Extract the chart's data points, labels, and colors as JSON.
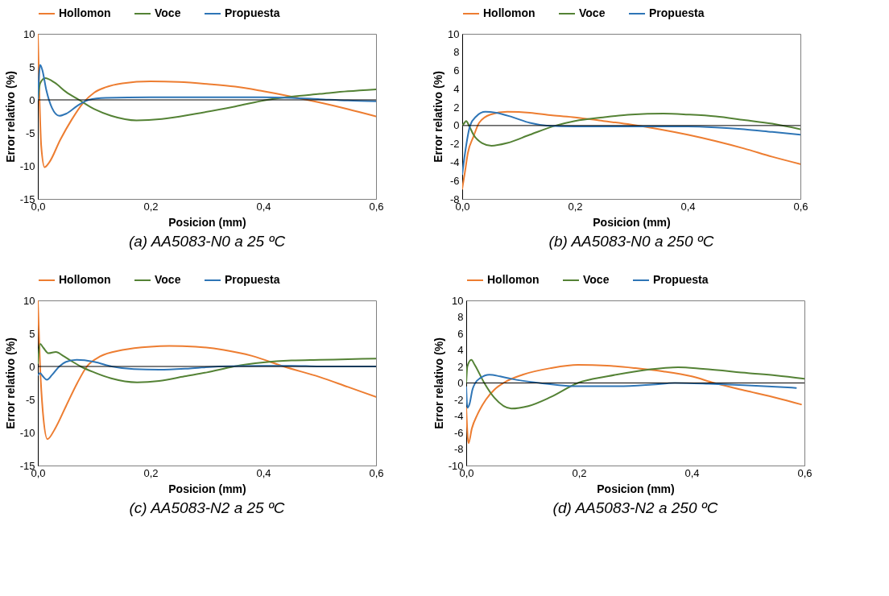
{
  "chart_data": [
    {
      "type": "line",
      "title": "(a) AA5083-N0 a 25 ºC",
      "xlabel": "Posicion (mm)",
      "ylabel": "Error relativo (%)",
      "legend": "top",
      "xlim": [
        0,
        0.6
      ],
      "xticks": [
        {
          "value": 0,
          "label": "0,0"
        },
        {
          "value": 0.2,
          "label": "0,2"
        },
        {
          "value": 0.4,
          "label": "0,4"
        },
        {
          "value": 0.6,
          "label": "0,6"
        }
      ],
      "ylim": [
        -15,
        10
      ],
      "yticks": [
        -15,
        -10,
        -5,
        0,
        5,
        10
      ],
      "ref_lines": [
        {
          "axis": "y",
          "value": 0,
          "color": "#000000"
        }
      ],
      "series": [
        {
          "name": "Hollomon",
          "color": "#ed7d31",
          "x": [
            0,
            0.003,
            0.006,
            0.012,
            0.02,
            0.04,
            0.06,
            0.08,
            0.1,
            0.12,
            0.15,
            0.2,
            0.25,
            0.3,
            0.35,
            0.4,
            0.45,
            0.5,
            0.55,
            0.6
          ],
          "values": [
            10,
            0,
            -7,
            -10.2,
            -9.5,
            -6,
            -3,
            -0.5,
            1.1,
            1.9,
            2.5,
            2.8,
            2.7,
            2.4,
            2.0,
            1.3,
            0.5,
            -0.4,
            -1.4,
            -2.5
          ]
        },
        {
          "name": "Voce",
          "color": "#548235",
          "x": [
            0,
            0.004,
            0.013,
            0.03,
            0.05,
            0.073,
            0.1,
            0.13,
            0.175,
            0.22,
            0.28,
            0.35,
            0.407,
            0.45,
            0.5,
            0.55,
            0.6
          ],
          "values": [
            0,
            2.5,
            3.3,
            2.6,
            1.2,
            0,
            -1.4,
            -2.4,
            -3.1,
            -2.9,
            -2.1,
            -1.0,
            0,
            0.5,
            0.9,
            1.3,
            1.6
          ]
        },
        {
          "name": "Propuesta",
          "color": "#2e75b6",
          "x": [
            0,
            0.002,
            0.004,
            0.008,
            0.015,
            0.025,
            0.038,
            0.05,
            0.07,
            0.09,
            0.12,
            0.2,
            0.3,
            0.4,
            0.45,
            0.5,
            0.55,
            0.6
          ],
          "values": [
            0,
            3.5,
            5.3,
            4.5,
            1.5,
            -1.2,
            -2.4,
            -2.1,
            -0.9,
            0,
            0.3,
            0.4,
            0.4,
            0.4,
            0.3,
            0.1,
            -0.1,
            -0.2
          ]
        }
      ]
    },
    {
      "type": "line",
      "title": "(b) AA5083-N0 a 250 ºC",
      "xlabel": "Posicion (mm)",
      "ylabel": "Error relativo (%)",
      "legend": "top",
      "xlim": [
        0,
        0.6
      ],
      "xticks": [
        {
          "value": 0,
          "label": "0,0"
        },
        {
          "value": 0.2,
          "label": "0,2"
        },
        {
          "value": 0.4,
          "label": "0,4"
        },
        {
          "value": 0.6,
          "label": "0,6"
        }
      ],
      "ylim": [
        -8,
        10
      ],
      "yticks": [
        -8,
        -6,
        -4,
        -2,
        0,
        2,
        4,
        6,
        8,
        10
      ],
      "ref_lines": [
        {
          "axis": "y",
          "value": 0,
          "color": "#000000"
        }
      ],
      "series": [
        {
          "name": "Hollomon",
          "color": "#ed7d31",
          "x": [
            0,
            0.005,
            0.01,
            0.02,
            0.03,
            0.05,
            0.08,
            0.12,
            0.16,
            0.2,
            0.25,
            0.3,
            0.35,
            0.4,
            0.45,
            0.5,
            0.55,
            0.6
          ],
          "values": [
            -6.9,
            -5,
            -3,
            -1.2,
            0.3,
            1.2,
            1.5,
            1.4,
            1.1,
            0.9,
            0.5,
            0.1,
            -0.4,
            -1.0,
            -1.7,
            -2.5,
            -3.4,
            -4.2
          ]
        },
        {
          "name": "Voce",
          "color": "#548235",
          "x": [
            0,
            0.004,
            0.007,
            0.012,
            0.02,
            0.035,
            0.052,
            0.08,
            0.12,
            0.166,
            0.2,
            0.25,
            0.3,
            0.357,
            0.4,
            0.45,
            0.5,
            0.55,
            0.6
          ],
          "values": [
            0,
            0.3,
            0.5,
            0,
            -1,
            -1.9,
            -2.2,
            -1.9,
            -1.0,
            0,
            0.5,
            0.9,
            1.2,
            1.3,
            1.2,
            1.0,
            0.6,
            0.2,
            -0.4
          ]
        },
        {
          "name": "Propuesta",
          "color": "#2e75b6",
          "x": [
            0,
            0.005,
            0.014,
            0.025,
            0.041,
            0.06,
            0.09,
            0.12,
            0.15,
            0.2,
            0.3,
            0.4,
            0.45,
            0.5,
            0.55,
            0.6
          ],
          "values": [
            -5.3,
            -3,
            0,
            1.0,
            1.5,
            1.4,
            0.9,
            0.3,
            0,
            -0.1,
            -0.1,
            -0.1,
            -0.2,
            -0.4,
            -0.7,
            -1.0
          ]
        }
      ]
    },
    {
      "type": "line",
      "title": "(c) AA5083-N2 a 25 ºC",
      "xlabel": "Posicion (mm)",
      "ylabel": "Error relativo (%)",
      "legend": "top",
      "xlim": [
        0,
        0.6
      ],
      "xticks": [
        {
          "value": 0,
          "label": "0,0"
        },
        {
          "value": 0.2,
          "label": "0,2"
        },
        {
          "value": 0.4,
          "label": "0,4"
        },
        {
          "value": 0.6,
          "label": "0,6"
        }
      ],
      "ylim": [
        -15,
        10
      ],
      "yticks": [
        -15,
        -10,
        -5,
        0,
        5,
        10
      ],
      "ref_lines": [
        {
          "axis": "y",
          "value": 0,
          "color": "#000000"
        }
      ],
      "series": [
        {
          "name": "Hollomon",
          "color": "#ed7d31",
          "x": [
            0,
            0.004,
            0.009,
            0.017,
            0.03,
            0.05,
            0.07,
            0.087,
            0.11,
            0.15,
            0.2,
            0.233,
            0.28,
            0.33,
            0.38,
            0.436,
            0.5,
            0.55,
            0.6
          ],
          "values": [
            10,
            0,
            -7,
            -11.0,
            -9.5,
            -6,
            -2.5,
            0,
            1.5,
            2.5,
            3.0,
            3.1,
            3.0,
            2.5,
            1.6,
            0,
            -1.6,
            -3.1,
            -4.6
          ]
        },
        {
          "name": "Voce",
          "color": "#548235",
          "x": [
            0,
            0.004,
            0.01,
            0.019,
            0.032,
            0.045,
            0.06,
            0.076,
            0.1,
            0.13,
            0.176,
            0.215,
            0.26,
            0.3,
            0.348,
            0.4,
            0.45,
            0.5,
            0.55,
            0.6
          ],
          "values": [
            0.5,
            3.4,
            2.8,
            2.0,
            2.2,
            1.6,
            0.8,
            0,
            -0.9,
            -1.8,
            -2.4,
            -2.2,
            -1.5,
            -0.9,
            0,
            0.6,
            0.9,
            1.0,
            1.1,
            1.2
          ]
        },
        {
          "name": "Propuesta",
          "color": "#2e75b6",
          "x": [
            0,
            0.004,
            0.009,
            0.016,
            0.025,
            0.038,
            0.05,
            0.069,
            0.1,
            0.131,
            0.17,
            0.215,
            0.27,
            0.32,
            0.4,
            0.45,
            0.5,
            0.6
          ],
          "values": [
            -1.3,
            -1.0,
            -1.5,
            -2.0,
            -1.3,
            0,
            0.7,
            1.0,
            0.7,
            0,
            -0.4,
            -0.5,
            -0.3,
            0,
            0.1,
            0.1,
            0,
            0
          ]
        }
      ]
    },
    {
      "type": "line",
      "title": "(d) AA5083-N2 a 250 ºC",
      "xlabel": "Posicion (mm)",
      "ylabel": "Error relativo (%)",
      "legend": "top",
      "xlim": [
        0,
        0.6
      ],
      "xticks": [
        {
          "value": 0,
          "label": "0,0"
        },
        {
          "value": 0.2,
          "label": "0,2"
        },
        {
          "value": 0.4,
          "label": "0,4"
        },
        {
          "value": 0.6,
          "label": "0,6"
        }
      ],
      "ylim": [
        -10,
        10
      ],
      "yticks": [
        -10,
        -8,
        -6,
        -4,
        -2,
        0,
        2,
        4,
        6,
        8,
        10
      ],
      "ref_lines": [
        {
          "axis": "y",
          "value": 0,
          "color": "#000000"
        }
      ],
      "series": [
        {
          "name": "Hollomon",
          "color": "#ed7d31",
          "x": [
            0,
            0.004,
            0.01,
            0.02,
            0.035,
            0.05,
            0.066,
            0.1,
            0.15,
            0.198,
            0.25,
            0.3,
            0.35,
            0.4,
            0.44,
            0.5,
            0.55,
            0.594
          ],
          "values": [
            -3,
            -7.3,
            -5.5,
            -3.8,
            -2,
            -0.8,
            0,
            1.0,
            1.8,
            2.2,
            2.1,
            1.8,
            1.4,
            0.8,
            0,
            -1.0,
            -1.8,
            -2.6
          ]
        },
        {
          "name": "Voce",
          "color": "#548235",
          "x": [
            0,
            0.002,
            0.009,
            0.015,
            0.032,
            0.05,
            0.08,
            0.11,
            0.15,
            0.198,
            0.25,
            0.3,
            0.35,
            0.376,
            0.42,
            0.5,
            0.55,
            0.6
          ],
          "values": [
            0,
            2.0,
            2.8,
            2.2,
            0,
            -1.8,
            -3.1,
            -2.8,
            -1.7,
            0,
            0.8,
            1.4,
            1.8,
            1.9,
            1.7,
            1.2,
            0.9,
            0.5
          ]
        },
        {
          "name": "Propuesta",
          "color": "#2e75b6",
          "x": [
            0,
            0.002,
            0.006,
            0.011,
            0.016,
            0.025,
            0.041,
            0.06,
            0.08,
            0.13,
            0.2,
            0.27,
            0.33,
            0.37,
            0.43,
            0.5,
            0.585
          ],
          "values": [
            -0.5,
            -3.0,
            -2.5,
            -0.8,
            0,
            0.6,
            1.0,
            0.8,
            0.5,
            0,
            -0.4,
            -0.4,
            -0.2,
            0,
            -0.1,
            -0.3,
            -0.6
          ]
        }
      ]
    }
  ]
}
